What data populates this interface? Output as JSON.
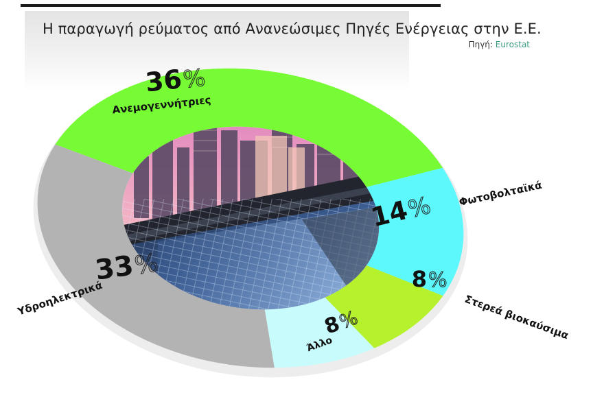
{
  "title": "Η παραγωγή ρεύματος από Ανανεώσιμες Πηγές Ενέργειας στην Ε.Ε.",
  "source": {
    "label": "Πηγή:",
    "name": "Eurostat"
  },
  "colors": {
    "wind": "#77fb35",
    "solar": "#5cf8fb",
    "biomass": "#b5f22d",
    "other": "#c8fbfb",
    "hydro": "#b3b3b3"
  },
  "chart_data": {
    "type": "pie",
    "title": "Η παραγωγή ρεύματος από Ανανεώσιμες Πηγές Ενέργειας στην Ε.Ε.",
    "unit": "%",
    "slices": [
      {
        "label": "Ανεμογεννήτριες",
        "value": 36,
        "color": "#77fb35"
      },
      {
        "label": "Φωτοβολταϊκά",
        "value": 14,
        "color": "#5cf8fb"
      },
      {
        "label": "Στερεά βιοκαύσιμα",
        "value": 8,
        "color": "#b5f22d"
      },
      {
        "label": "Άλλο",
        "value": 8,
        "color": "#c8fbfb"
      },
      {
        "label": "Υδροηλεκτρικά",
        "value": 33,
        "color": "#b3b3b3"
      }
    ]
  }
}
